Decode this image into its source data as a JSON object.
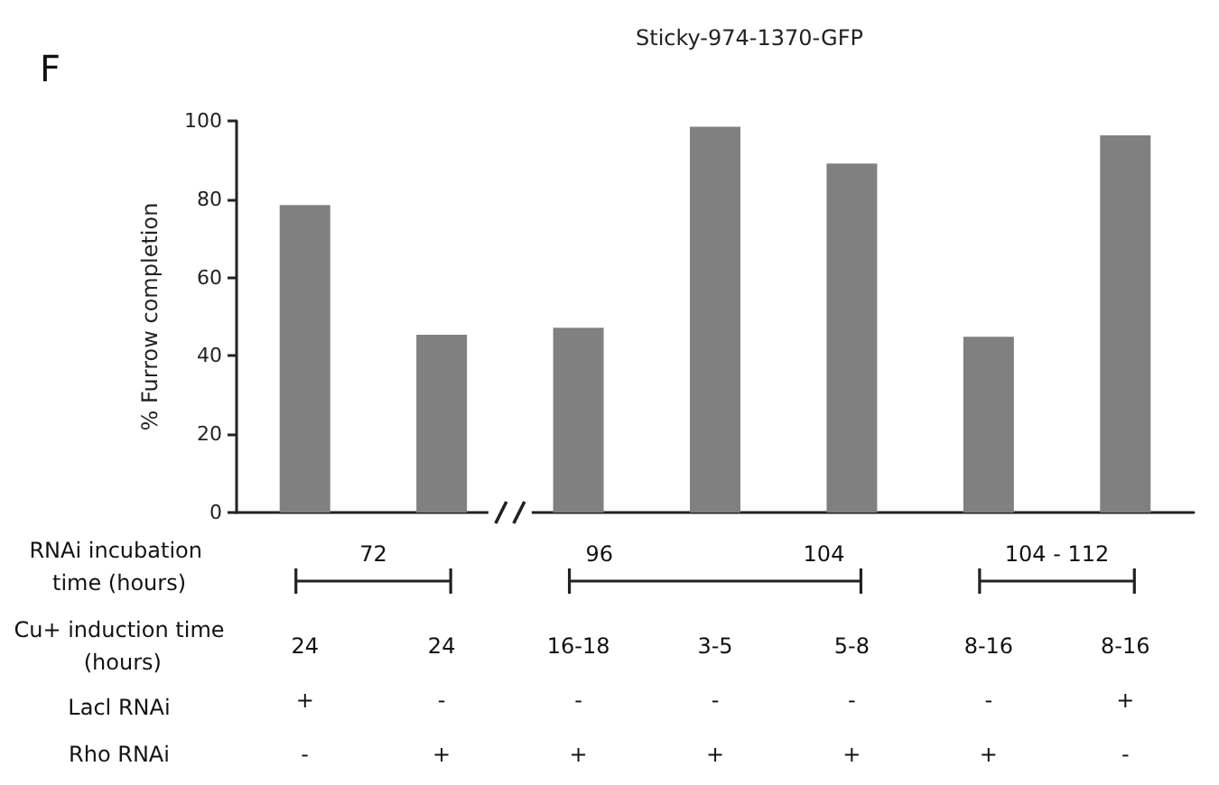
{
  "chart_data": {
    "type": "bar",
    "title": "Sticky-974-1370-GFP",
    "ylabel": "% Furrow completion",
    "categories": [
      "24\n+\n-",
      "24\n-\n+",
      "16-18\n-\n+",
      "3-5\n-\n+",
      "5-8\n-\n+",
      "8-16\n-\n+",
      "8-16\n+\n-"
    ],
    "values": [
      78.5,
      45.4,
      47.2,
      98.5,
      89.1,
      44.9,
      96.3
    ],
    "color": "#808080",
    "ylim": [
      0,
      100
    ],
    "yticks": [
      0,
      20,
      40,
      60,
      80,
      100
    ],
    "annotations": [
      "F",
      "RNAi incubation time (hours)",
      "Cu+ induction time (hours)",
      "Lacl RNAi",
      "Rho RNAi",
      "72",
      "96",
      "104",
      "104 - 112"
    ]
  }
}
